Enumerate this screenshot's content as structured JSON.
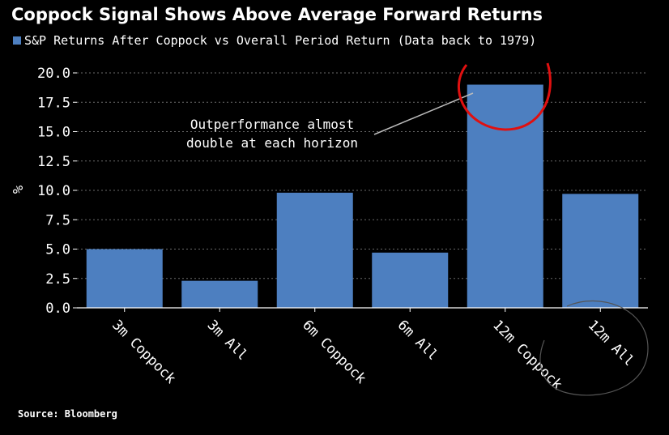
{
  "header": {
    "title": "Coppock Signal Shows Above Average Forward Returns",
    "legend_label": "S&P Returns After Coppock vs Overall Period Return (Data back to 1979)"
  },
  "footer": {
    "source": "Source: Bloomberg"
  },
  "colors": {
    "bar": "#4d7fc0",
    "background": "#000000",
    "highlight_circle": "#e01010"
  },
  "chart_data": {
    "type": "bar",
    "categories": [
      "3m Coppock",
      "3m All",
      "6m Coppock",
      "6m All",
      "12m Coppock",
      "12m All"
    ],
    "series": [
      {
        "name": "S&P Returns After Coppock vs Overall Period Return (Data back to 1979)",
        "values": [
          5.0,
          2.3,
          9.8,
          4.7,
          19.0,
          9.7
        ]
      }
    ],
    "ylabel": "%",
    "ylim": [
      0,
      20
    ],
    "yticks": [
      "0.0",
      "2.5",
      "5.0",
      "7.5",
      "10.0",
      "12.5",
      "15.0",
      "17.5",
      "20.0"
    ],
    "grid": true,
    "annotations": [
      {
        "text_line1": "Outperformance almost",
        "text_line2": "double at each horizon"
      }
    ]
  }
}
